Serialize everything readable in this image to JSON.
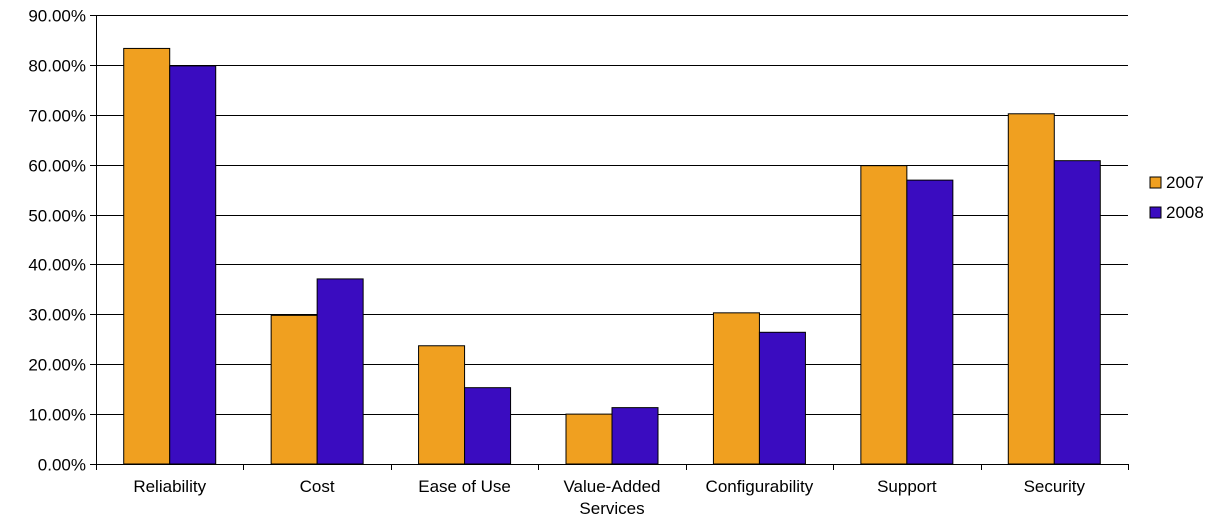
{
  "chart_data": {
    "type": "bar",
    "categories": [
      "Reliability",
      "Cost",
      "Ease of Use",
      "Value-Added Services",
      "Configurability",
      "Support",
      "Security"
    ],
    "category_lines": [
      [
        "Reliability"
      ],
      [
        "Cost"
      ],
      [
        "Ease of Use"
      ],
      [
        "Value-Added",
        "Services"
      ],
      [
        "Configurability"
      ],
      [
        "Support"
      ],
      [
        "Security"
      ]
    ],
    "series": [
      {
        "name": "2007",
        "color": "#f0a020",
        "values": [
          83.3,
          29.8,
          23.7,
          10.0,
          30.3,
          59.8,
          70.2
        ]
      },
      {
        "name": "2008",
        "color": "#3a0cc0",
        "values": [
          79.8,
          37.1,
          15.3,
          11.3,
          26.4,
          56.9,
          60.8
        ]
      }
    ],
    "yticks": [
      "0.00%",
      "10.00%",
      "20.00%",
      "30.00%",
      "40.00%",
      "50.00%",
      "60.00%",
      "70.00%",
      "80.00%",
      "90.00%"
    ],
    "ylim": [
      0,
      90
    ],
    "ystep": 10,
    "grid": true,
    "legend_position": "right",
    "title": "",
    "xlabel": "",
    "ylabel": ""
  }
}
